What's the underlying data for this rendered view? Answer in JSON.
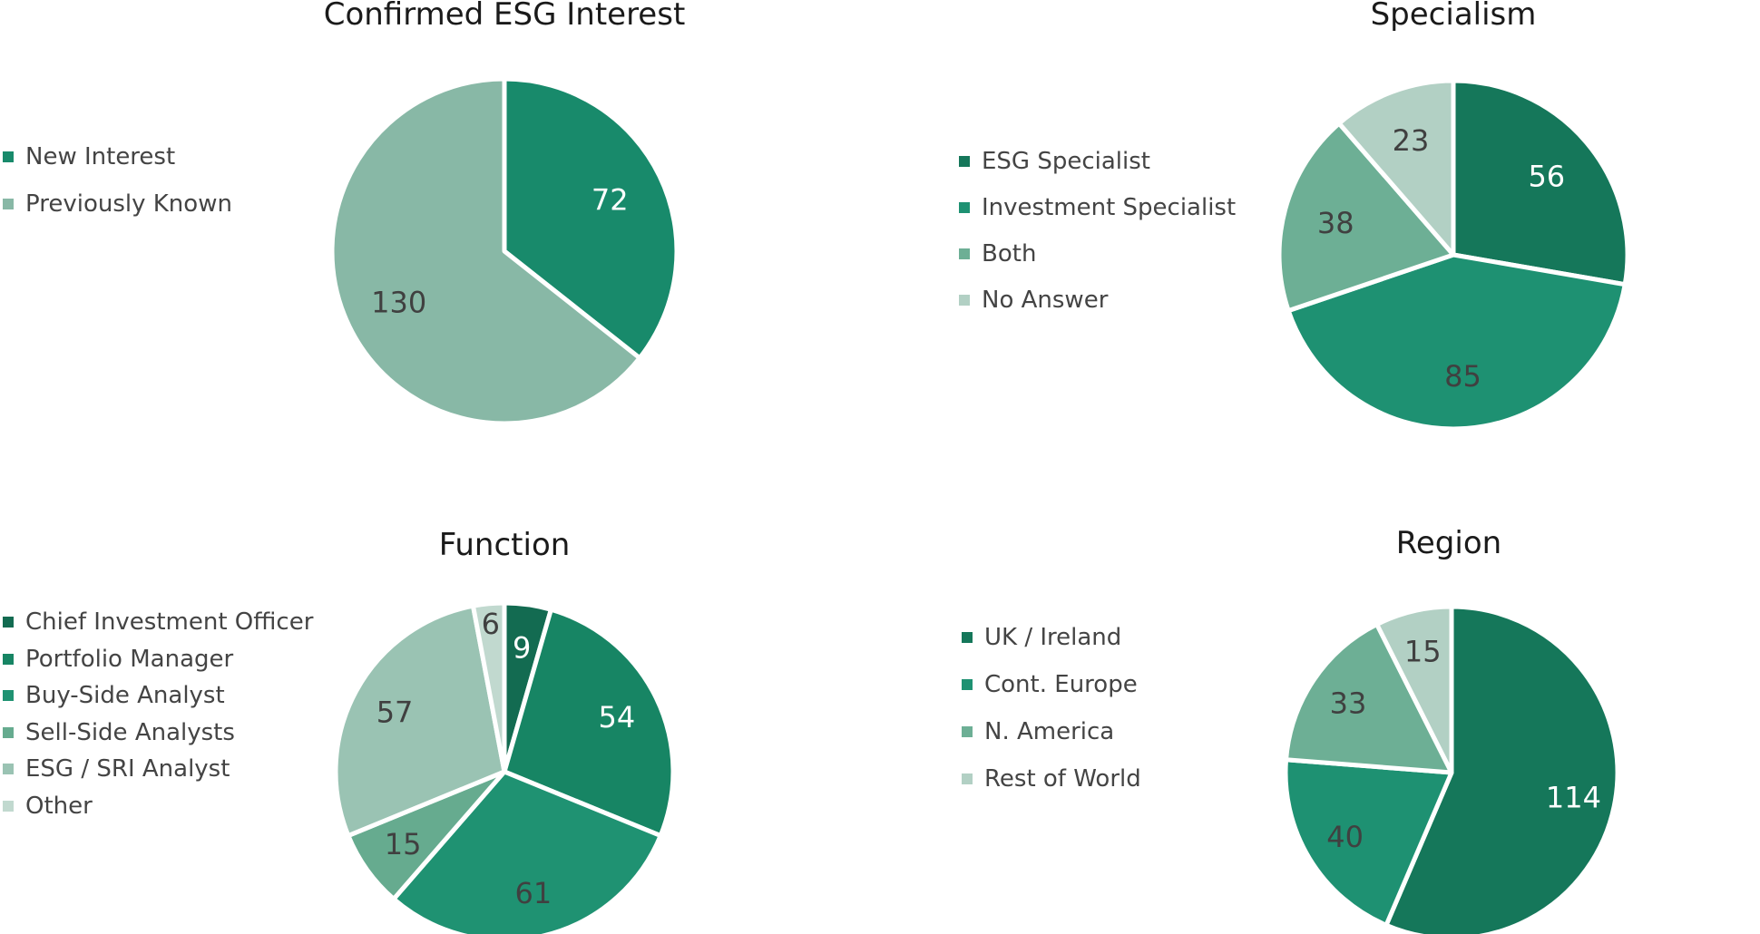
{
  "chart_data": [
    {
      "type": "pie",
      "title": "Confirmed ESG Interest",
      "categories": [
        "New Interest",
        "Previously Known"
      ],
      "values": [
        72,
        130
      ],
      "colors": [
        "#188a6b",
        "#88b8a6"
      ],
      "label_colors": [
        "#ffffff",
        "#404040"
      ],
      "start": "top",
      "direction": "clockwise",
      "legend_position": "left"
    },
    {
      "type": "pie",
      "title": "Specialism",
      "categories": [
        "ESG Specialist",
        "Investment Specialist",
        "Both",
        "No Answer"
      ],
      "values": [
        56,
        85,
        38,
        23
      ],
      "colors": [
        "#15775a",
        "#1e9172",
        "#6daf95",
        "#b2d0c4"
      ],
      "label_colors": [
        "#ffffff",
        "#404040",
        "#404040",
        "#404040"
      ],
      "start": "top",
      "direction": "clockwise",
      "legend_position": "left"
    },
    {
      "type": "pie",
      "title": "Function",
      "categories": [
        "Chief Investment Officer",
        "Portfolio Manager",
        "Buy-Side Analyst",
        "Sell-Side Analysts",
        "ESG / SRI Analyst",
        "Other"
      ],
      "values": [
        9,
        54,
        61,
        15,
        57,
        6
      ],
      "colors": [
        "#136b51",
        "#178564",
        "#1f9272",
        "#66ab8f",
        "#9ac3b3",
        "#c1d9cf"
      ],
      "label_colors": [
        "#ffffff",
        "#ffffff",
        "#404040",
        "#404040",
        "#404040",
        "#404040"
      ],
      "start": "top",
      "direction": "clockwise",
      "legend_position": "left"
    },
    {
      "type": "pie",
      "title": "Region",
      "categories": [
        "UK / Ireland",
        "Cont. Europe",
        "N. America",
        "Rest of World"
      ],
      "values": [
        114,
        40,
        33,
        15
      ],
      "colors": [
        "#15775a",
        "#1e9172",
        "#6daf95",
        "#b2d0c4"
      ],
      "label_colors": [
        "#ffffff",
        "#404040",
        "#404040",
        "#404040"
      ],
      "start": "top",
      "direction": "clockwise",
      "legend_position": "left"
    }
  ]
}
